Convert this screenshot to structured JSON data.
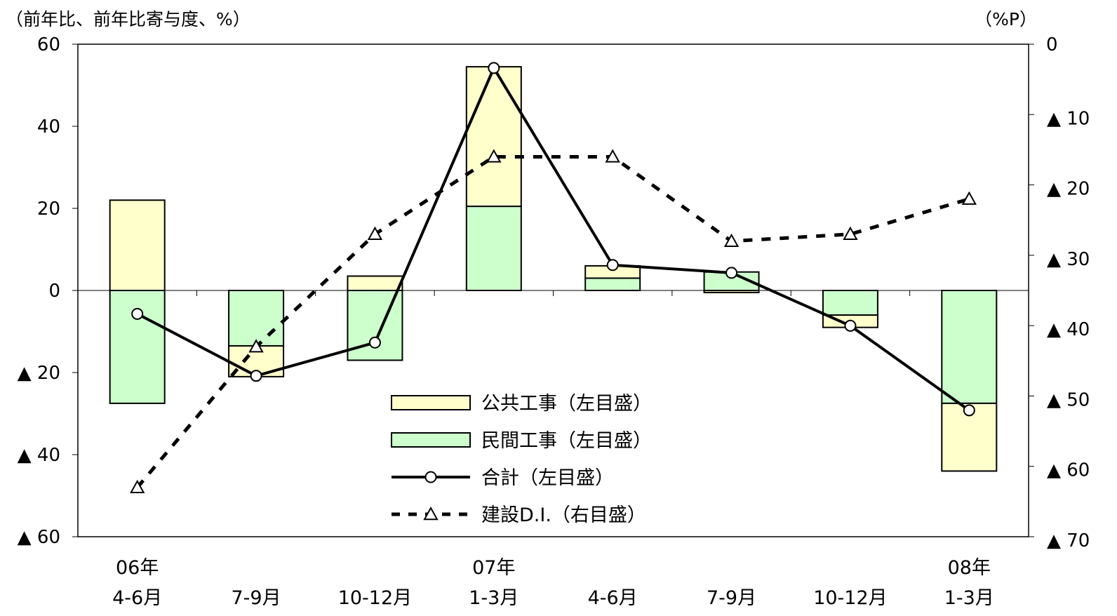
{
  "chart_data": {
    "type": "bar",
    "left_unit_label": "（前年比、前年比寄与度、%）",
    "right_unit_label": "（%P）",
    "left_axis": {
      "ylim": [
        -60,
        60
      ],
      "ticks": [
        60,
        40,
        20,
        0,
        -20,
        -40,
        -60
      ],
      "tick_labels": [
        "60",
        "40",
        "20",
        "0",
        "▲ 20",
        "▲ 40",
        "▲ 60"
      ]
    },
    "right_axis": {
      "ylim": [
        -70,
        0
      ],
      "ticks": [
        0,
        -10,
        -20,
        -30,
        -40,
        -50,
        -60,
        -70
      ],
      "tick_labels": [
        "0",
        "▲ 10",
        "▲ 20",
        "▲ 30",
        "▲ 40",
        "▲ 50",
        "▲ 60",
        "▲ 70"
      ]
    },
    "categories": [
      {
        "line1": "06年",
        "line2": "4-6月"
      },
      {
        "line1": "",
        "line2": "7-9月"
      },
      {
        "line1": "",
        "line2": "10-12月"
      },
      {
        "line1": "07年",
        "line2": "1-3月"
      },
      {
        "line1": "",
        "line2": "4-6月"
      },
      {
        "line1": "",
        "line2": "7-9月"
      },
      {
        "line1": "",
        "line2": "10-12月"
      },
      {
        "line1": "08年",
        "line2": "1-3月"
      }
    ],
    "series": [
      {
        "name": "公共工事（左目盛）",
        "kind": "bar",
        "axis": "left",
        "color": "#ffffcc",
        "values": [
          22,
          -7.5,
          3.5,
          34,
          3,
          -0.5,
          -3,
          -16.5
        ]
      },
      {
        "name": "民間工事（左目盛）",
        "kind": "bar",
        "axis": "left",
        "color": "#ccffcc",
        "values": [
          -27.5,
          -13.5,
          -17,
          20.5,
          3,
          4.5,
          -6,
          -27.5
        ]
      },
      {
        "name": "合計（左目盛）",
        "kind": "line",
        "axis": "left",
        "color": "#000000",
        "marker": "circle",
        "values": [
          -5.7,
          -20.8,
          -12.7,
          54.2,
          6.2,
          4.3,
          -8.6,
          -29.2
        ]
      },
      {
        "name": "建設D.I.（右目盛）",
        "kind": "line",
        "axis": "right",
        "color": "#000000",
        "marker": "triangle",
        "dash": true,
        "values": [
          -63,
          -43,
          -27,
          -16,
          -16,
          -28,
          -27,
          -22
        ]
      }
    ],
    "grid": false,
    "legend_position": "center-bottom"
  }
}
